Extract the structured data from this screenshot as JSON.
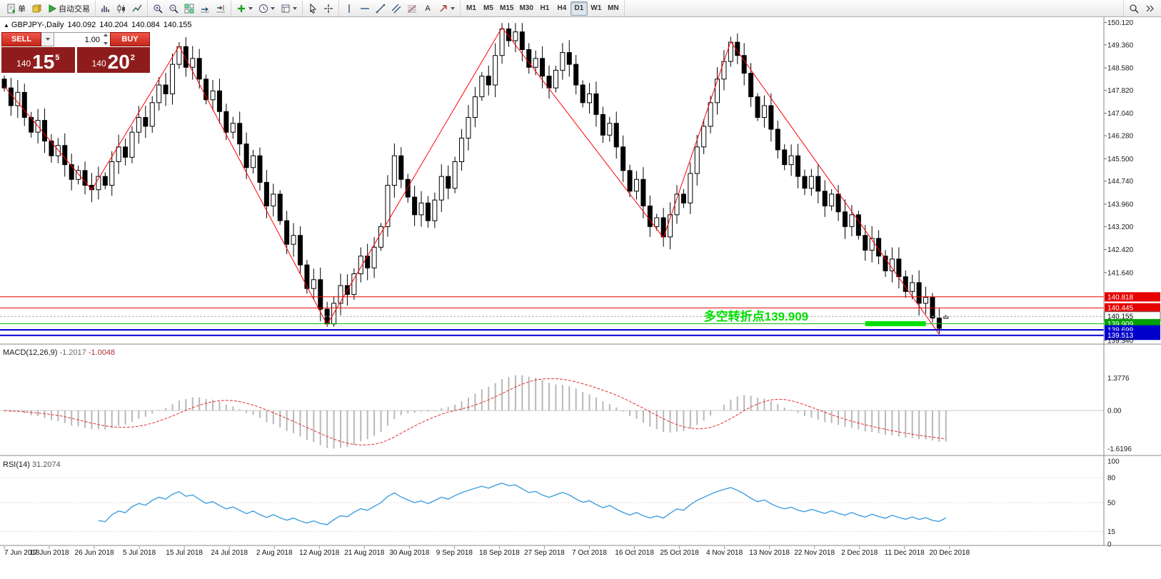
{
  "toolbar": {
    "groups": [
      {
        "name": "trade-group",
        "items": [
          {
            "name": "new-order-button",
            "icon": "doc-plus",
            "label": "单"
          },
          {
            "name": "market-watch-button",
            "icon": "cube"
          },
          {
            "name": "auto-trading-button",
            "icon": "play",
            "label": "自动交易"
          }
        ]
      },
      {
        "name": "chart-type-group",
        "items": [
          {
            "name": "bar-chart-button",
            "icon": "chart-bars"
          },
          {
            "name": "candlestick-chart-button",
            "icon": "chart-candles"
          },
          {
            "name": "line-chart-button",
            "icon": "chart-line"
          }
        ]
      },
      {
        "name": "zoom-group",
        "items": [
          {
            "name": "zoom-in-button",
            "icon": "zoom-in"
          },
          {
            "name": "zoom-out-button",
            "icon": "zoom-out"
          },
          {
            "name": "tile-windows-button",
            "icon": "tile"
          },
          {
            "name": "auto-scroll-button",
            "icon": "auto-scroll"
          },
          {
            "name": "chart-shift-button",
            "icon": "chart-shift"
          }
        ]
      },
      {
        "name": "insert-group",
        "items": [
          {
            "name": "indicators-button",
            "icon": "indicator-plus",
            "dropdown": true
          },
          {
            "name": "periods-button",
            "icon": "clock",
            "dropdown": true
          },
          {
            "name": "templates-button",
            "icon": "template",
            "dropdown": true
          }
        ]
      },
      {
        "name": "cursor-group",
        "items": [
          {
            "name": "cursor-button",
            "icon": "cursor"
          },
          {
            "name": "crosshair-button",
            "icon": "crosshair"
          }
        ]
      },
      {
        "name": "objects-group",
        "items": [
          {
            "name": "vertical-line-button",
            "icon": "vline"
          },
          {
            "name": "horizontal-line-button",
            "icon": "hline"
          },
          {
            "name": "trendline-button",
            "icon": "trendline"
          },
          {
            "name": "channel-button",
            "icon": "channel"
          },
          {
            "name": "fibonacci-button",
            "icon": "fibo"
          },
          {
            "name": "text-button",
            "label": "A"
          },
          {
            "name": "arrows-button",
            "icon": "arrow-sym",
            "dropdown": true
          }
        ]
      },
      {
        "name": "timeframe-group",
        "items": [
          {
            "name": "timeframe-m1-button",
            "label": "M1",
            "timeframe": true
          },
          {
            "name": "timeframe-m5-button",
            "label": "M5",
            "timeframe": true
          },
          {
            "name": "timeframe-m15-button",
            "label": "M15",
            "timeframe": true
          },
          {
            "name": "timeframe-m30-button",
            "label": "M30",
            "timeframe": true
          },
          {
            "name": "timeframe-h1-button",
            "label": "H1",
            "timeframe": true
          },
          {
            "name": "timeframe-h4-button",
            "label": "H4",
            "timeframe": true
          },
          {
            "name": "timeframe-d1-button",
            "label": "D1",
            "timeframe": true,
            "active": true
          },
          {
            "name": "timeframe-w1-button",
            "label": "W1",
            "timeframe": true
          },
          {
            "name": "timeframe-mn-button",
            "label": "MN",
            "timeframe": true
          }
        ]
      }
    ],
    "right_items": [
      {
        "name": "search-button",
        "icon": "search"
      },
      {
        "name": "more-buttons-button",
        "icon": "chevrons"
      }
    ]
  },
  "symbol_line": {
    "marker": "▲",
    "symbol": "GBPJPY-,Daily",
    "open": "140.092",
    "high": "140.204",
    "low": "140.084",
    "close": "140.155"
  },
  "trade_panel": {
    "sell_label": "SELL",
    "buy_label": "BUY",
    "volume": "1.00",
    "sell_price": {
      "main": "140",
      "big": "15",
      "sup": "5"
    },
    "buy_price": {
      "main": "140",
      "big": "20",
      "sup": "2"
    }
  },
  "chart_data": {
    "type": "candlestick",
    "symbol": "GBPJPY-",
    "timeframe": "Daily",
    "ohlc_current": {
      "open": 140.092,
      "high": 140.204,
      "low": 140.084,
      "close": 140.155
    },
    "first_open": 148.2,
    "closes": [
      147.9,
      147.3,
      147.75,
      146.9,
      146.4,
      146.8,
      146.1,
      145.6,
      145.95,
      145.3,
      144.8,
      145.1,
      144.6,
      144.45,
      144.9,
      144.6,
      145.4,
      145.9,
      145.55,
      146.4,
      146.9,
      146.6,
      147.4,
      148.0,
      147.7,
      148.7,
      149.3,
      148.6,
      148.9,
      148.2,
      147.5,
      147.8,
      147.1,
      146.4,
      146.7,
      146.0,
      145.2,
      145.6,
      144.7,
      143.9,
      144.3,
      143.4,
      142.6,
      142.9,
      141.9,
      141.1,
      141.4,
      140.4,
      139.9,
      140.6,
      141.2,
      140.9,
      141.6,
      142.2,
      141.8,
      142.5,
      143.2,
      144.6,
      145.6,
      144.8,
      144.2,
      143.6,
      144.0,
      143.4,
      144.1,
      144.9,
      144.5,
      145.4,
      146.2,
      146.9,
      147.6,
      148.3,
      148.0,
      149.0,
      149.9,
      149.5,
      149.8,
      149.2,
      148.6,
      148.9,
      148.3,
      147.9,
      148.5,
      149.1,
      148.7,
      148.0,
      147.4,
      147.7,
      147.0,
      146.3,
      146.7,
      145.9,
      145.1,
      144.4,
      144.8,
      143.9,
      143.2,
      143.5,
      142.85,
      143.6,
      144.3,
      144.0,
      145.0,
      145.9,
      146.6,
      147.4,
      148.2,
      148.8,
      149.45,
      149.0,
      148.4,
      147.6,
      146.9,
      147.3,
      146.5,
      145.8,
      145.3,
      145.6,
      144.9,
      144.5,
      144.9,
      144.4,
      143.9,
      144.3,
      143.7,
      143.2,
      143.6,
      142.9,
      142.4,
      142.8,
      142.2,
      141.7,
      142.1,
      141.5,
      141.0,
      141.3,
      140.6,
      140.8,
      140.1,
      139.75,
      140.155
    ],
    "zigzag": {
      "color": "#ff0000",
      "points": [
        [
          0,
          147.95
        ],
        [
          13,
          144.45
        ],
        [
          26,
          149.32
        ],
        [
          48,
          139.88
        ],
        [
          74,
          149.95
        ],
        [
          98,
          142.82
        ],
        [
          108,
          149.47
        ],
        [
          139,
          139.55
        ]
      ]
    },
    "price_scale_ticks": [
      "150.120",
      "149.360",
      "148.580",
      "147.820",
      "147.040",
      "146.280",
      "145.500",
      "144.740",
      "143.960",
      "143.200",
      "142.420",
      "141.640",
      "139.340"
    ],
    "levels": [
      {
        "price": 140.818,
        "label": "140.818",
        "color": "#e60000",
        "tag_bg": "#e60000",
        "tag_text": "#ffffff",
        "width": 1
      },
      {
        "price": 140.445,
        "label": "140.445",
        "color": "#e60000",
        "tag_bg": "#e60000",
        "tag_text": "#ffffff",
        "width": 1
      },
      {
        "price": 140.155,
        "label": "140.155",
        "color": "#b0b0b0",
        "tag_bg": "#ffffff",
        "tag_text": "#000000",
        "width": 1,
        "dashed": true,
        "current": true
      },
      {
        "price": 139.909,
        "label": "139.909",
        "color": "#00b300",
        "tag_bg": "#00a000",
        "tag_text": "#ffffff",
        "width": 1
      },
      {
        "price": 139.699,
        "label": "139.699",
        "color": "#0000d0",
        "tag_bg": "#0000cc",
        "tag_text": "#ffffff",
        "width": 2
      },
      {
        "price": 139.513,
        "label": "139.513",
        "color": "#0000d0",
        "tag_bg": "#0000cc",
        "tag_text": "#ffffff",
        "width": 2
      }
    ],
    "highlight_segment": {
      "from_index": 128,
      "to_index": 137,
      "price": 139.909,
      "thickness": 7,
      "color": "#00e000"
    },
    "annotation": {
      "text": "多空转折点139.909",
      "color": "#00dd00",
      "at_index": 104,
      "price": 140.015
    },
    "macd": {
      "label": "MACD(12,26,9)",
      "value_macd": "-1.2017",
      "value_signal": "-1.0048",
      "fast": 12,
      "slow": 26,
      "signal": 9,
      "histogram_color": "#b8b8b8",
      "signal_color": "#e03030",
      "scale_ticks": [
        {
          "v": 1.3776,
          "label": "1.3776"
        },
        {
          "v": 0,
          "label": "0.00"
        },
        {
          "v": -1.6196,
          "label": "-1.6196"
        }
      ]
    },
    "rsi": {
      "label": "RSI(14)",
      "value": "31.2074",
      "period": 14,
      "line_color": "#3f9fdf",
      "levels": [
        80,
        50,
        15
      ],
      "scale_ticks": [
        {
          "v": 100,
          "label": "100"
        },
        {
          "v": 80,
          "label": "80"
        },
        {
          "v": 50,
          "label": "50"
        },
        {
          "v": 15,
          "label": "15"
        },
        {
          "v": 0,
          "label": "0"
        }
      ]
    },
    "x_dates": [
      "7 Jun 2018",
      "17 Jun 2018",
      "26 Jun 2018",
      "5 Jul 2018",
      "15 Jul 2018",
      "24 Jul 2018",
      "2 Aug 2018",
      "12 Aug 2018",
      "21 Aug 2018",
      "30 Aug 2018",
      "9 Sep 2018",
      "18 Sep 2018",
      "27 Sep 2018",
      "7 Oct 2018",
      "16 Oct 2018",
      "25 Oct 2018",
      "4 Nov 2018",
      "13 Nov 2018",
      "22 Nov 2018",
      "2 Dec 2018",
      "11 Dec 2018",
      "20 Dec 2018"
    ],
    "candle_up_color": "#ffffff",
    "candle_down_color": "#000000",
    "candle_border_color": "#000000"
  }
}
